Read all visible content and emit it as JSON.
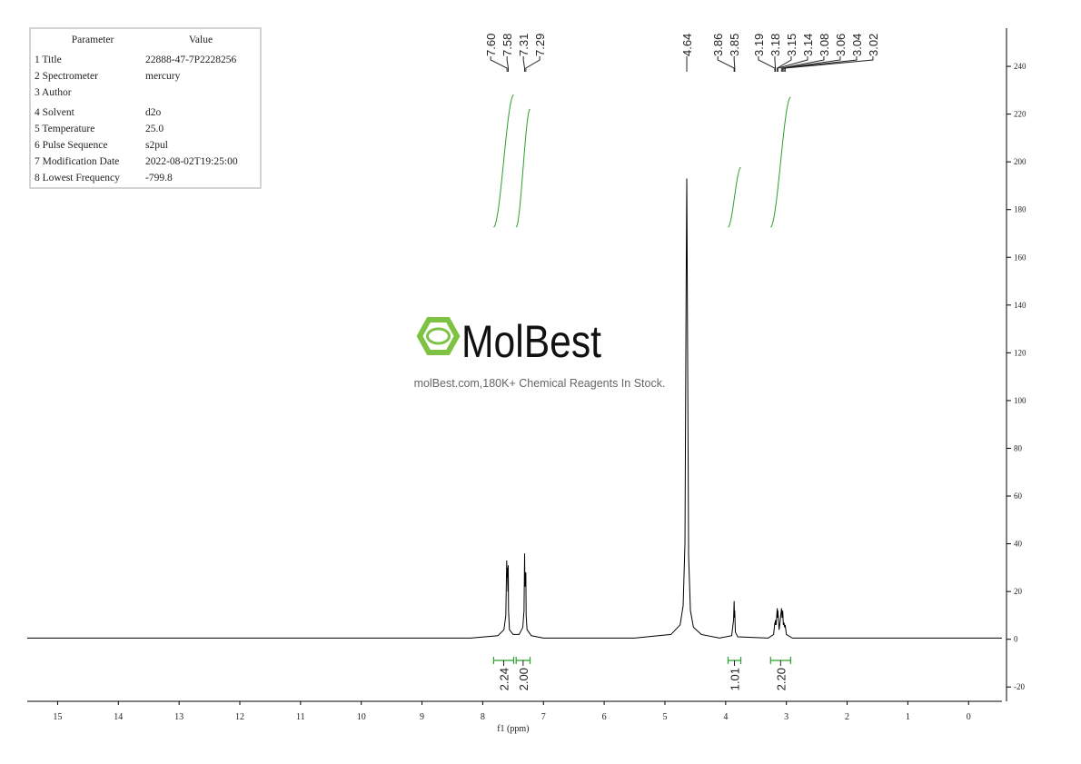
{
  "parameters": {
    "header": [
      "Parameter",
      "Value"
    ],
    "rows": [
      [
        "1 Title",
        "22888-47-7P2228256"
      ],
      [
        "2 Spectrometer",
        "mercury"
      ],
      [
        "3 Author"
      ],
      [
        "4 Solvent",
        "d2o"
      ],
      [
        "5 Temperature",
        "25.0"
      ],
      [
        "6 Pulse Sequence",
        "s2pul"
      ],
      [
        "7 Modification Date",
        "2022-08-02T19:25:00"
      ],
      [
        "8 Lowest Frequency",
        "-799.8"
      ]
    ]
  },
  "watermark": {
    "brand": "MolBest",
    "tagline": "molBest.com,180K+ Chemical Reagents In Stock."
  },
  "chart_data": {
    "type": "line",
    "x_label": "f1 (ppm)",
    "xlim": [
      15.5,
      -0.55
    ],
    "xticks": [
      15,
      14,
      13,
      12,
      11,
      10,
      9,
      8,
      7,
      6,
      5,
      4,
      3,
      2,
      1,
      0
    ],
    "ylim": [
      -26,
      256
    ],
    "yticks": [
      -20,
      0,
      20,
      40,
      60,
      80,
      100,
      120,
      140,
      160,
      180,
      200,
      220,
      240
    ],
    "series": [
      {
        "color": "#000000",
        "x": [
          15.5,
          8.2,
          7.75,
          7.65,
          7.62,
          7.605,
          7.6,
          7.595,
          7.585,
          7.58,
          7.575,
          7.56,
          7.5,
          7.4,
          7.34,
          7.32,
          7.31,
          7.305,
          7.295,
          7.29,
          7.285,
          7.27,
          7.2,
          7.0,
          5.5,
          4.9,
          4.75,
          4.7,
          4.67,
          4.65,
          4.64,
          4.63,
          4.61,
          4.58,
          4.53,
          4.4,
          4.1,
          3.9,
          3.87,
          3.86,
          3.855,
          3.85,
          3.84,
          3.8,
          3.3,
          3.21,
          3.19,
          3.185,
          3.18,
          3.17,
          3.15,
          3.145,
          3.14,
          3.12,
          3.1,
          3.08,
          3.07,
          3.06,
          3.05,
          3.04,
          3.03,
          3.02,
          3.0,
          2.9,
          2.0,
          -0.55
        ],
        "values": [
          0.5,
          0.5,
          1.5,
          4,
          10,
          33,
          26,
          30,
          20,
          31,
          12,
          4,
          2,
          2,
          5,
          12,
          36,
          22,
          27,
          28,
          10,
          4,
          1.5,
          0.5,
          0.5,
          2,
          6,
          14,
          40,
          150,
          193,
          140,
          35,
          12,
          5,
          2,
          0.5,
          1.5,
          8,
          16,
          9,
          12,
          3,
          1,
          0.5,
          2,
          7,
          6,
          8,
          6,
          13,
          9,
          12,
          4,
          8,
          13,
          9,
          12,
          6,
          7,
          5,
          6,
          2,
          0.5,
          0.5,
          0.5
        ]
      }
    ],
    "peaks": {
      "values": [
        7.6,
        7.58,
        7.31,
        7.29,
        4.64,
        3.86,
        3.85,
        3.19,
        3.18,
        3.15,
        3.14,
        3.08,
        3.06,
        3.04,
        3.02
      ],
      "value_labels": [
        "7.60",
        "7.58",
        "7.31",
        "7.29",
        "4.64",
        "3.86",
        "3.85",
        "3.19",
        "3.18",
        "3.15",
        "3.14",
        "3.08",
        "3.06",
        "3.04",
        "3.02"
      ]
    },
    "integrals": {
      "color": "#2ca02c",
      "ranges": [
        [
          7.82,
          7.49
        ],
        [
          7.45,
          7.22
        ],
        [
          3.96,
          3.75
        ],
        [
          3.26,
          2.93
        ]
      ],
      "values": [
        2.24,
        2.0,
        1.01,
        2.2
      ],
      "value_labels": [
        "2.24",
        "2.00",
        "1.01",
        "2.20"
      ]
    }
  }
}
